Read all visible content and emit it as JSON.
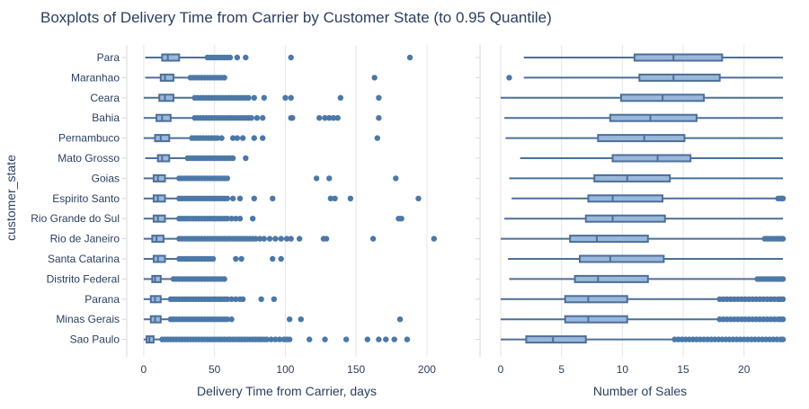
{
  "chart_data": {
    "type": "boxplot",
    "title": "Boxplots of Delivery Time from Carrier by Customer State (to 0.95 Quantile)",
    "y_axis_title": "customer_state",
    "categories": [
      "Para",
      "Maranhao",
      "Ceara",
      "Bahia",
      "Pernambuco",
      "Mato Grosso",
      "Goias",
      "Espirito Santo",
      "Rio Grande do Sul",
      "Rio de Janeiro",
      "Santa Catarina",
      "Distrito Federal",
      "Parana",
      "Minas Gerais",
      "Sao Paulo"
    ],
    "colors": {
      "box_fill": "#9ab8db",
      "line": "#4c6f9a",
      "marker": "#4c78a8",
      "grid": "#e6e6e6",
      "axis_line": "#d9d9d9"
    },
    "panels": [
      {
        "id": "left",
        "xlabel": "Delivery Time from Carrier, days",
        "xlim": [
          -12,
          214
        ],
        "xticks": [
          0,
          50,
          100,
          150,
          200
        ],
        "grid": true,
        "boxes": [
          {
            "whislo": 1,
            "q1": 13,
            "median": 17,
            "q3": 25,
            "whishi": 44,
            "outliers": [
              45,
              47,
              49,
              51,
              53,
              55,
              57,
              59,
              61,
              66,
              72,
              104,
              188
            ]
          },
          {
            "whislo": 1,
            "q1": 12,
            "median": 15,
            "q3": 21,
            "whishi": 32,
            "outliers": [
              33,
              35,
              37,
              39,
              41,
              43,
              45,
              47,
              49,
              51,
              53,
              55,
              57,
              163
            ]
          },
          {
            "whislo": 0,
            "q1": 11,
            "median": 15,
            "q3": 21,
            "whishi": 35,
            "outliers": [
              36,
              38,
              40,
              42,
              44,
              46,
              48,
              50,
              52,
              54,
              56,
              58,
              60,
              62,
              64,
              66,
              68,
              70,
              72,
              74,
              78,
              85,
              100,
              104,
              139,
              166
            ]
          },
          {
            "whislo": 0,
            "q1": 9,
            "median": 13,
            "q3": 19,
            "whishi": 35,
            "outliers": [
              36,
              38,
              40,
              42,
              44,
              46,
              48,
              50,
              52,
              54,
              56,
              58,
              60,
              62,
              64,
              66,
              68,
              70,
              72,
              74,
              76,
              80,
              84,
              104,
              105,
              124,
              128,
              131,
              134,
              137,
              166
            ]
          },
          {
            "whislo": 0,
            "q1": 8,
            "median": 12,
            "q3": 18,
            "whishi": 33,
            "outliers": [
              34,
              36,
              38,
              40,
              42,
              44,
              46,
              48,
              50,
              52,
              55,
              63,
              66,
              70,
              78,
              84,
              165
            ]
          },
          {
            "whislo": 1,
            "q1": 10,
            "median": 13,
            "q3": 18,
            "whishi": 30,
            "outliers": [
              31,
              33,
              35,
              37,
              39,
              41,
              43,
              45,
              47,
              49,
              51,
              53,
              55,
              57,
              59,
              61,
              63,
              72
            ]
          },
          {
            "whislo": 0,
            "q1": 7,
            "median": 10,
            "q3": 15,
            "whishi": 24,
            "outliers": [
              25,
              27,
              29,
              31,
              33,
              35,
              37,
              39,
              41,
              43,
              45,
              47,
              49,
              51,
              53,
              55,
              57,
              59,
              122,
              131,
              178
            ]
          },
          {
            "whislo": 0,
            "q1": 7,
            "median": 10,
            "q3": 15,
            "whishi": 24,
            "outliers": [
              25,
              27,
              29,
              31,
              33,
              35,
              37,
              39,
              41,
              43,
              45,
              47,
              49,
              51,
              53,
              55,
              57,
              59,
              63,
              68,
              78,
              91,
              132,
              135,
              146,
              194
            ]
          },
          {
            "whislo": 0,
            "q1": 7,
            "median": 10,
            "q3": 15,
            "whishi": 24,
            "outliers": [
              25,
              27,
              29,
              31,
              33,
              35,
              37,
              39,
              41,
              43,
              45,
              47,
              49,
              51,
              53,
              55,
              57,
              59,
              62,
              65,
              68,
              77,
              180,
              182
            ]
          },
          {
            "whislo": 0,
            "q1": 6,
            "median": 9,
            "q3": 14,
            "whishi": 24,
            "outliers": [
              25,
              27,
              29,
              31,
              33,
              35,
              37,
              39,
              41,
              43,
              45,
              47,
              49,
              51,
              53,
              55,
              57,
              59,
              61,
              63,
              65,
              67,
              69,
              71,
              73,
              75,
              77,
              79,
              82,
              85,
              89,
              93,
              97,
              101,
              104,
              110,
              127,
              129,
              162,
              205
            ]
          },
          {
            "whislo": 0,
            "q1": 7,
            "median": 10,
            "q3": 15,
            "whishi": 24,
            "outliers": [
              25,
              27,
              29,
              31,
              33,
              35,
              37,
              39,
              41,
              43,
              45,
              47,
              49,
              65,
              69,
              91,
              97
            ]
          },
          {
            "whislo": 0,
            "q1": 6,
            "median": 8,
            "q3": 12,
            "whishi": 20,
            "outliers": [
              21,
              23,
              25,
              27,
              29,
              31,
              33,
              35,
              37,
              39,
              41,
              43,
              45,
              47,
              49,
              51,
              53,
              55,
              57
            ]
          },
          {
            "whislo": 0,
            "q1": 5,
            "median": 8,
            "q3": 12,
            "whishi": 18,
            "outliers": [
              19,
              21,
              23,
              25,
              27,
              29,
              31,
              33,
              35,
              37,
              39,
              41,
              43,
              45,
              47,
              49,
              51,
              53,
              55,
              57,
              59,
              62,
              65,
              68,
              70,
              83,
              92
            ]
          },
          {
            "whislo": 0,
            "q1": 5,
            "median": 8,
            "q3": 12,
            "whishi": 18,
            "outliers": [
              19,
              21,
              23,
              25,
              27,
              29,
              31,
              33,
              35,
              37,
              39,
              41,
              43,
              45,
              47,
              49,
              51,
              53,
              55,
              57,
              59,
              62,
              103,
              111,
              181
            ]
          },
          {
            "whislo": 0,
            "q1": 2,
            "median": 4,
            "q3": 7,
            "whishi": 12,
            "outliers": [
              13,
              15,
              17,
              19,
              21,
              23,
              25,
              27,
              29,
              31,
              33,
              35,
              37,
              39,
              41,
              43,
              45,
              47,
              49,
              51,
              53,
              55,
              57,
              59,
              61,
              63,
              65,
              67,
              69,
              71,
              73,
              75,
              77,
              79,
              81,
              83,
              85,
              87,
              90,
              93,
              96,
              99,
              101,
              103,
              117,
              128,
              143,
              158,
              166,
              171,
              177,
              186
            ]
          }
        ]
      },
      {
        "id": "right",
        "xlabel": "Number of Sales",
        "xlim": [
          -1.7,
          24.6
        ],
        "xticks": [
          0,
          5,
          10,
          15,
          20
        ],
        "grid": true,
        "boxes": [
          {
            "whislo": 1.9,
            "q1": 11.0,
            "median": 14.2,
            "q3": 18.2,
            "whishi": 23.2,
            "outliers": []
          },
          {
            "whislo": 1.9,
            "q1": 11.4,
            "median": 14.2,
            "q3": 18.0,
            "whishi": 23.2,
            "outliers": [
              0.7
            ]
          },
          {
            "whislo": 0,
            "q1": 9.9,
            "median": 13.3,
            "q3": 16.7,
            "whishi": 23.2,
            "outliers": []
          },
          {
            "whislo": 0.3,
            "q1": 9.0,
            "median": 12.3,
            "q3": 16.1,
            "whishi": 23.2,
            "outliers": []
          },
          {
            "whislo": 0.4,
            "q1": 8.0,
            "median": 11.8,
            "q3": 15.1,
            "whishi": 23.2,
            "outliers": []
          },
          {
            "whislo": 1.6,
            "q1": 9.2,
            "median": 12.9,
            "q3": 15.6,
            "whishi": 23.2,
            "outliers": []
          },
          {
            "whislo": 0.7,
            "q1": 7.7,
            "median": 10.4,
            "q3": 13.9,
            "whishi": 23.2,
            "outliers": []
          },
          {
            "whislo": 0.9,
            "q1": 7.2,
            "median": 9.2,
            "q3": 13.3,
            "whishi": 22.6,
            "outliers": [
              22.8,
              23.0,
              23.1,
              23.2
            ]
          },
          {
            "whislo": 0.3,
            "q1": 7.0,
            "median": 9.2,
            "q3": 13.5,
            "whishi": 23.2,
            "outliers": []
          },
          {
            "whislo": 0,
            "q1": 5.7,
            "median": 7.9,
            "q3": 12.1,
            "whishi": 21.5,
            "outliers": [
              21.7,
              21.9,
              22.1,
              22.3,
              22.5,
              22.7,
              22.9,
              23.1,
              23.2
            ]
          },
          {
            "whislo": 0.6,
            "q1": 6.5,
            "median": 9.0,
            "q3": 13.4,
            "whishi": 23.2,
            "outliers": []
          },
          {
            "whislo": 0.7,
            "q1": 6.1,
            "median": 8.0,
            "q3": 12.1,
            "whishi": 20.9,
            "outliers": [
              21.1,
              21.3,
              21.5,
              21.7,
              21.9,
              22.1,
              22.3,
              22.5,
              22.7,
              22.9,
              23.1,
              23.2
            ]
          },
          {
            "whislo": 0,
            "q1": 5.3,
            "median": 7.2,
            "q3": 10.4,
            "whishi": 17.9,
            "outliers": [
              18.0,
              18.3,
              18.6,
              18.9,
              19.2,
              19.5,
              19.8,
              20.1,
              20.4,
              20.7,
              21.0,
              21.3,
              21.6,
              21.9,
              22.2,
              22.5,
              22.8,
              23.0,
              23.2
            ]
          },
          {
            "whislo": 0,
            "q1": 5.3,
            "median": 7.2,
            "q3": 10.4,
            "whishi": 17.9,
            "outliers": [
              18.0,
              18.3,
              18.6,
              18.9,
              19.2,
              19.5,
              19.8,
              20.1,
              20.4,
              20.7,
              21.0,
              21.3,
              21.6,
              21.9,
              22.2,
              22.5,
              22.8,
              23.0,
              23.2
            ]
          },
          {
            "whislo": 0,
            "q1": 2.1,
            "median": 4.3,
            "q3": 7.0,
            "whishi": 14.2,
            "outliers": [
              14.3,
              14.6,
              14.9,
              15.2,
              15.5,
              15.8,
              16.1,
              16.4,
              16.7,
              17.0,
              17.3,
              17.6,
              17.9,
              18.2,
              18.5,
              18.8,
              19.1,
              19.4,
              19.7,
              20.0,
              20.3,
              20.6,
              20.9,
              21.2,
              21.5,
              21.8,
              22.1,
              22.4,
              22.7,
              23.0,
              23.2
            ]
          }
        ]
      }
    ]
  }
}
